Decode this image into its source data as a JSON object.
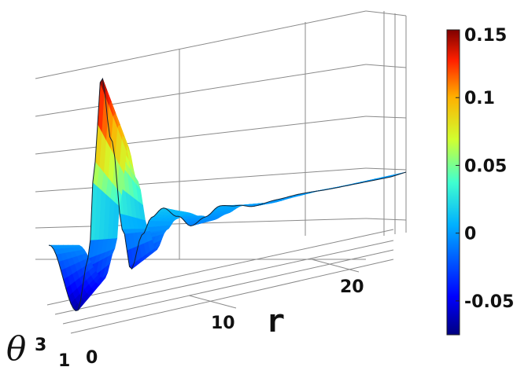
{
  "chart_data": {
    "type": "surface",
    "title": "",
    "x_axis": {
      "label": "r",
      "ticks": [
        10,
        20
      ],
      "range": [
        0,
        30
      ]
    },
    "y_axis": {
      "label": "θ",
      "ticks": [
        0,
        1,
        3
      ],
      "tick_labels": [
        "0",
        "1",
        "3"
      ],
      "range": [
        0,
        3
      ]
    },
    "z_axis": {
      "range": [
        -0.075,
        0.15
      ]
    },
    "colorbar": {
      "colormap": "jet",
      "min": -0.075,
      "max": 0.15,
      "ticks": [
        0.15,
        0.1,
        0.05,
        0,
        -0.05
      ],
      "tick_labels": [
        "0.15",
        "0.1",
        "0.05",
        "0",
        "-0.05"
      ]
    },
    "profile": {
      "r": [
        0,
        2.5,
        3.5,
        4.0,
        4.6,
        5.5,
        6.5,
        7.2,
        8.2,
        9.0,
        10.0,
        11.3,
        12.5,
        13.7,
        15.0,
        16.5,
        18.0,
        20.0,
        22.0,
        25.0,
        28.0
      ],
      "value": [
        0.0,
        -0.07,
        -0.02,
        0.07,
        0.155,
        0.09,
        0.0,
        -0.04,
        -0.008,
        0.007,
        0.014,
        0.003,
        -0.009,
        -0.003,
        0.005,
        0.002,
        -0.002,
        0.0,
        0.001,
        0.0,
        0.0
      ]
    },
    "grid": true,
    "legend": "none"
  }
}
